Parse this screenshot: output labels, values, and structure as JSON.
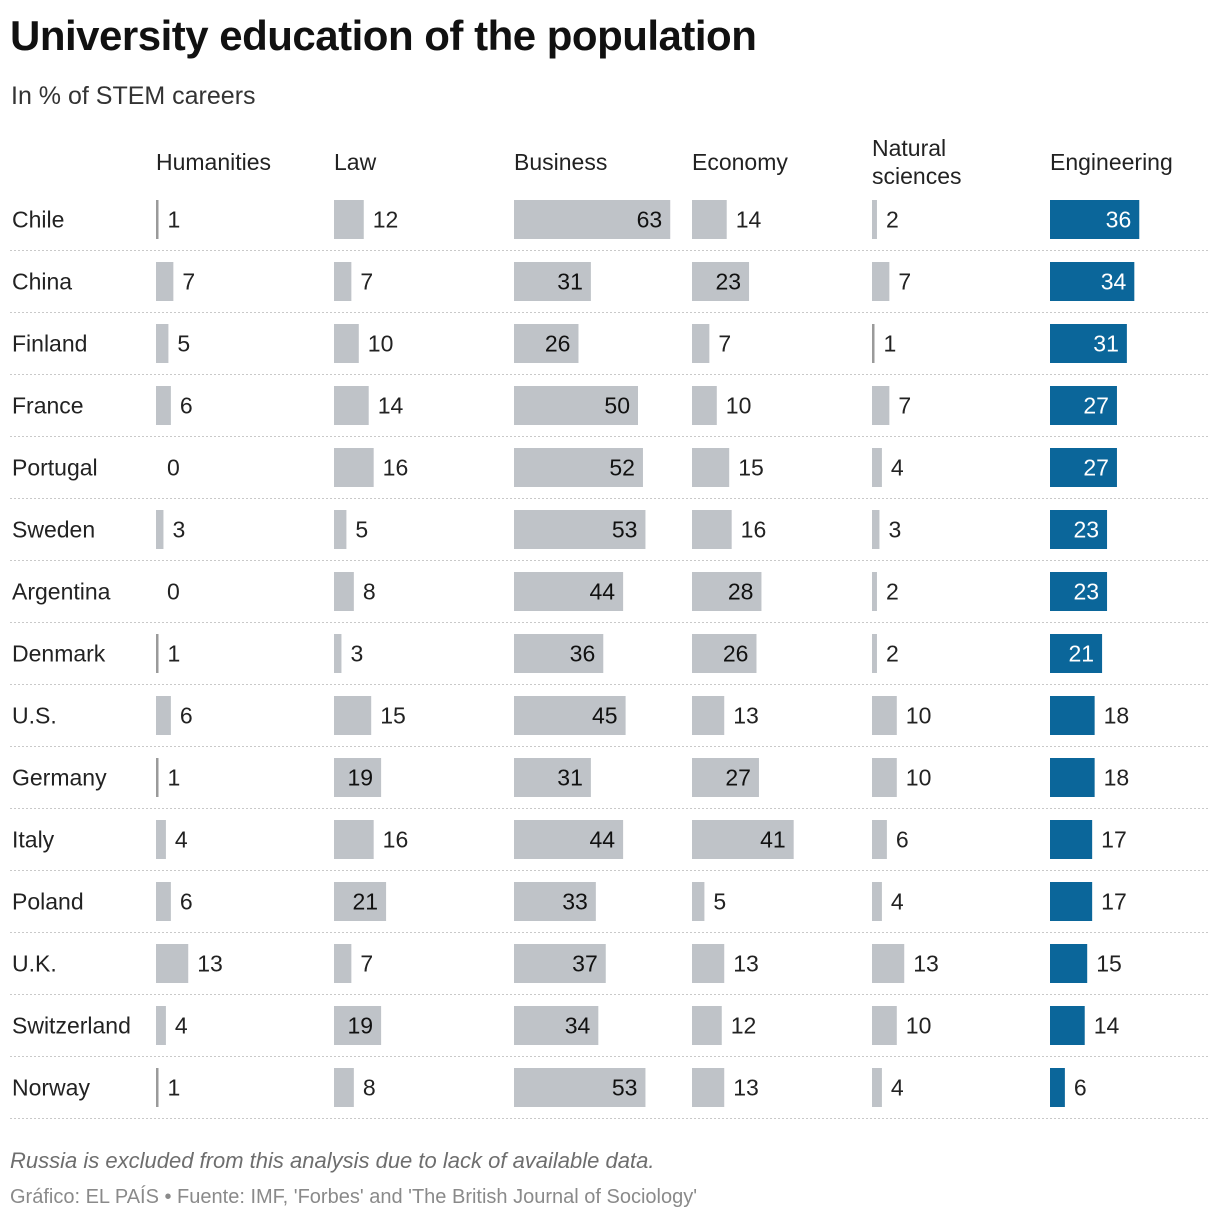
{
  "title": "University education of the population",
  "subtitle": "In % of STEM careers",
  "chart_data": {
    "type": "bar",
    "title": "University education of the population",
    "subtitle": "In % of STEM careers",
    "unit": "%",
    "categories": [
      "Chile",
      "China",
      "Finland",
      "France",
      "Portugal",
      "Sweden",
      "Argentina",
      "Denmark",
      "U.S.",
      "Germany",
      "Italy",
      "Poland",
      "U.K.",
      "Switzerland",
      "Norway"
    ],
    "series": [
      {
        "name": "Humanities",
        "header_lines": [
          "Humanities"
        ],
        "values": [
          1,
          7,
          5,
          6,
          0,
          3,
          0,
          1,
          6,
          1,
          4,
          6,
          13,
          4,
          1
        ]
      },
      {
        "name": "Law",
        "header_lines": [
          "Law"
        ],
        "values": [
          12,
          7,
          10,
          14,
          16,
          5,
          8,
          3,
          15,
          19,
          16,
          21,
          7,
          19,
          8
        ]
      },
      {
        "name": "Business",
        "header_lines": [
          "Business"
        ],
        "values": [
          63,
          31,
          26,
          50,
          52,
          53,
          44,
          36,
          45,
          31,
          44,
          33,
          37,
          34,
          53
        ]
      },
      {
        "name": "Economy",
        "header_lines": [
          "Economy"
        ],
        "values": [
          14,
          23,
          7,
          10,
          15,
          16,
          28,
          26,
          13,
          27,
          41,
          5,
          13,
          12,
          13
        ]
      },
      {
        "name": "Natural sciences",
        "header_lines": [
          "Natural",
          "sciences"
        ],
        "values": [
          2,
          7,
          1,
          7,
          4,
          3,
          2,
          2,
          10,
          10,
          6,
          4,
          13,
          10,
          4
        ]
      },
      {
        "name": "Engineering",
        "header_lines": [
          "Engineering"
        ],
        "values": [
          36,
          34,
          31,
          27,
          27,
          23,
          23,
          21,
          18,
          18,
          17,
          17,
          15,
          14,
          6
        ],
        "highlight": true
      }
    ],
    "colors": {
      "bar": "#bfc3c8",
      "highlight": "#0b669a",
      "gridline": "#c9c9c9",
      "zero_line": "#9a9a9a"
    },
    "label_inside_threshold": 19
  },
  "note": "Russia is excluded from this analysis due to lack of available data.",
  "source": "Gráfico: EL PAÍS • Fuente: IMF, 'Forbes' and 'The British Journal of Sociology'"
}
